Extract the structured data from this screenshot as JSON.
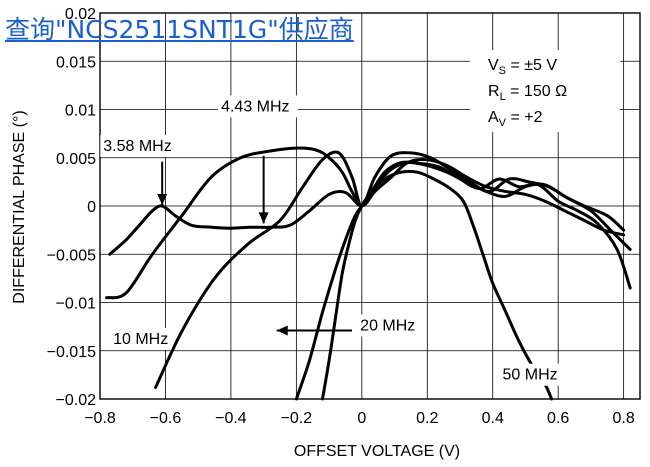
{
  "watermark_link": "查询\"NCS2511SNT1G\"供应商",
  "chart_data": {
    "type": "line",
    "xlabel": "OFFSET VOLTAGE (V)",
    "ylabel": "DIFFERENTIAL PHASE (°)",
    "xlim": [
      -0.8,
      0.85
    ],
    "ylim": [
      -0.02,
      0.02
    ],
    "xticks": [
      "-0.8",
      "-0.6",
      "-0.4",
      "-0.2",
      "0",
      "0.2",
      "0.4",
      "0.6",
      "0.8"
    ],
    "yticks": [
      "0.02",
      "0.015",
      "0.01",
      "0.005",
      "0",
      "-0.005",
      "-0.01",
      "-0.015",
      "-0.02"
    ],
    "grid": true,
    "conditions": {
      "vs_main": "V",
      "vs_sub": "S",
      "vs_value": " = ±5 V",
      "rl_main": "R",
      "rl_sub": "L",
      "rl_value": " = 150 Ω",
      "av_main": "A",
      "av_sub": "V",
      "av_value": " = +2"
    },
    "series": [
      {
        "name": "3.58 MHz",
        "x": [
          -0.77,
          -0.72,
          -0.68,
          -0.64,
          -0.61,
          -0.57,
          -0.52,
          -0.46,
          -0.4,
          -0.34,
          -0.28,
          -0.22,
          -0.16,
          -0.1,
          -0.05,
          0.0,
          0.04,
          0.09,
          0.14,
          0.2,
          0.26,
          0.32,
          0.38,
          0.44,
          0.5,
          0.56,
          0.62,
          0.68,
          0.74,
          0.8
        ],
        "y": [
          -0.005,
          -0.0035,
          -0.002,
          -0.0005,
          0.0,
          -0.001,
          -0.002,
          -0.0022,
          -0.0023,
          -0.0022,
          -0.0022,
          -0.002,
          -0.0005,
          0.0012,
          0.0014,
          0.0,
          0.0015,
          0.003,
          0.0045,
          0.0048,
          0.0042,
          0.003,
          0.002,
          0.0015,
          0.0012,
          0.0005,
          -0.0005,
          -0.0015,
          -0.0025,
          -0.003
        ]
      },
      {
        "name": "4.43 MHz",
        "x": [
          -0.78,
          -0.72,
          -0.64,
          -0.55,
          -0.46,
          -0.37,
          -0.28,
          -0.2,
          -0.14,
          -0.1,
          -0.06,
          -0.03,
          0.0,
          0.04,
          0.09,
          0.14,
          0.2,
          0.26,
          0.32,
          0.38,
          0.44,
          0.5,
          0.56,
          0.62,
          0.68,
          0.75,
          0.8
        ],
        "y": [
          -0.0095,
          -0.009,
          -0.005,
          -0.001,
          0.003,
          0.005,
          0.0057,
          0.006,
          0.0058,
          0.005,
          0.0035,
          0.0015,
          0.0,
          0.002,
          0.0038,
          0.0045,
          0.0042,
          0.0035,
          0.0025,
          0.0015,
          0.001,
          0.002,
          0.0022,
          0.001,
          0.0,
          -0.001,
          -0.0025
        ]
      },
      {
        "name": "10 MHz",
        "x": [
          -0.63,
          -0.55,
          -0.45,
          -0.35,
          -0.25,
          -0.18,
          -0.12,
          -0.07,
          -0.03,
          0.0,
          0.04,
          0.09,
          0.15,
          0.21,
          0.27,
          0.33,
          0.39,
          0.45,
          0.51,
          0.57,
          0.63,
          0.7,
          0.76,
          0.82
        ],
        "y": [
          -0.0188,
          -0.013,
          -0.0075,
          -0.004,
          -0.0015,
          0.002,
          0.0048,
          0.0055,
          0.003,
          0.0,
          0.003,
          0.0052,
          0.0055,
          0.005,
          0.0038,
          0.0025,
          0.0015,
          0.0028,
          0.0025,
          0.002,
          0.0008,
          -0.0005,
          -0.0025,
          -0.0045
        ]
      },
      {
        "name": "20 MHz",
        "x": [
          -0.2,
          -0.16,
          -0.12,
          -0.08,
          -0.05,
          -0.02,
          0.0,
          0.03,
          0.07,
          0.12,
          0.18,
          0.24,
          0.3,
          0.36,
          0.42,
          0.48,
          0.54,
          0.6,
          0.66,
          0.72,
          0.78,
          0.82
        ],
        "y": [
          -0.02,
          -0.016,
          -0.011,
          -0.0065,
          -0.0035,
          -0.001,
          0.0,
          0.0015,
          0.0035,
          0.0045,
          0.0044,
          0.004,
          0.0028,
          0.0018,
          0.0028,
          0.002,
          0.0022,
          0.0005,
          -0.0005,
          -0.0018,
          -0.0045,
          -0.0085
        ]
      },
      {
        "name": "50 MHz",
        "x": [
          -0.12,
          -0.1,
          -0.08,
          -0.06,
          -0.04,
          -0.02,
          0.0,
          0.03,
          0.07,
          0.12,
          0.17,
          0.22,
          0.27,
          0.31,
          0.34,
          0.37,
          0.4,
          0.44,
          0.48,
          0.52,
          0.56,
          0.58
        ],
        "y": [
          -0.02,
          -0.016,
          -0.0115,
          -0.007,
          -0.004,
          -0.0015,
          0.0,
          0.0015,
          0.0028,
          0.0035,
          0.0035,
          0.0028,
          0.0018,
          0.0005,
          -0.002,
          -0.005,
          -0.008,
          -0.011,
          -0.014,
          -0.0165,
          -0.0185,
          -0.02
        ]
      }
    ],
    "annotations": [
      {
        "text": "3.58 MHz",
        "tx": -0.79,
        "ty": 0.0057,
        "ax": -0.61,
        "ay": 0.0001,
        "arrow_start_x": -0.61,
        "arrow_start_y": 0.0046
      },
      {
        "text": "4.43 MHz",
        "tx": -0.43,
        "ty": 0.0098,
        "ax": -0.3,
        "ay": -0.0018,
        "arrow_start_x": -0.3,
        "arrow_start_y": 0.0052
      },
      {
        "text": "10 MHz",
        "tx": -0.76,
        "ty": -0.0143,
        "ax": null,
        "ay": null
      },
      {
        "text": "20 MHz",
        "tx": -0.005,
        "ty": -0.0129,
        "ax": -0.26,
        "ay": -0.0129,
        "arrow_start_x": -0.03,
        "arrow_start_y": -0.0129
      },
      {
        "text": "50 MHz",
        "tx": 0.43,
        "ty": -0.018,
        "ax": null,
        "ay": null
      }
    ]
  }
}
